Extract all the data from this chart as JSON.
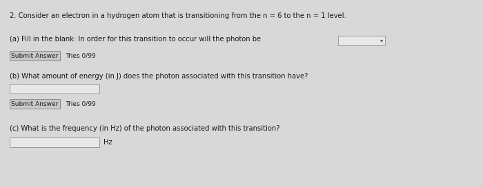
{
  "bg_color": "#d8d8d8",
  "text_color": "#1a1a1a",
  "box_face": "#e8e8e8",
  "box_edge": "#999999",
  "button_face": "#c8c8c8",
  "button_edge": "#888888",
  "title_text": "2. Consider an electron in a hydrogen atom that is transitioning from the n = 6 to the n = 1 level.",
  "part_a_label": "(a) Fill in the blank: In order for this transition to occur will the photon be",
  "part_a_submit": "Submit Answer",
  "part_a_tries": "Tries 0/99",
  "part_b_label": "(b) What amount of energy (in J) does the photon associated with this transition have?",
  "part_b_submit": "Submit Answer",
  "part_b_tries": "Tries 0/99",
  "part_c_label": "(c) What is the frequency (in Hz) of the photon associated with this transition?",
  "part_c_unit": "Hz",
  "fs_main": 7.2,
  "fs_btn": 6.5
}
